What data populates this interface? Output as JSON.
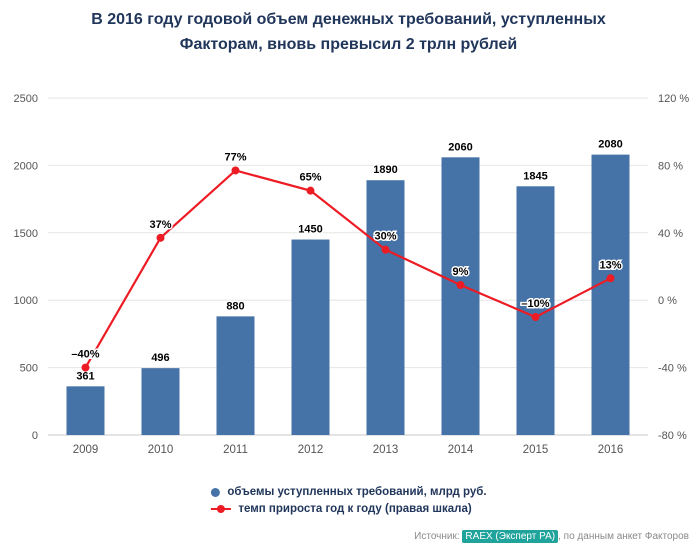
{
  "title": {
    "lines": [
      "В 2016 году годовой объем денежных требований, уступленных",
      "Факторам, вновь превысил 2 трлн рублей"
    ]
  },
  "colors": {
    "bar": "#4572a7",
    "line": "#ed1c24",
    "grid": "#e6e6e6",
    "axis_line": "#c8c8c8",
    "axis_text": "#555555",
    "value_label": "#000000",
    "title_text": "#21365b",
    "source_text": "#8a8a8a",
    "source_highlight_bg": "#1fa39b",
    "source_highlight_text": "#ffffff"
  },
  "chart_data": {
    "type": "bar",
    "subtype": "bar+line combo, dual axis",
    "categories": [
      "2009",
      "2010",
      "2011",
      "2012",
      "2013",
      "2014",
      "2015",
      "2016"
    ],
    "series": [
      {
        "name": "объемы уступленных требований, млрд руб.",
        "type": "bar",
        "axis": "left",
        "values": [
          361,
          496,
          880,
          1450,
          1890,
          2060,
          1845,
          2080
        ],
        "labels": [
          "361",
          "496",
          "880",
          "1450",
          "1890",
          "2060",
          "1845",
          "2080"
        ]
      },
      {
        "name": "темп прироста год к году (правая шкала)",
        "type": "line",
        "axis": "right",
        "values": [
          -40,
          37,
          77,
          65,
          30,
          9,
          -10,
          13
        ],
        "labels": [
          "–40%",
          "37%",
          "77%",
          "65%",
          "30%",
          "9%",
          "–10%",
          "13%"
        ]
      }
    ],
    "left_axis": {
      "min": 0,
      "max": 2500,
      "ticks": [
        0,
        500,
        1000,
        1500,
        2000,
        2500
      ],
      "tick_labels": [
        "0",
        "500",
        "1000",
        "1500",
        "2000",
        "2500"
      ]
    },
    "right_axis": {
      "min": -80,
      "max": 120,
      "ticks": [
        -80,
        -40,
        0,
        40,
        80,
        120
      ],
      "tick_labels": [
        "-80 %",
        "-40 %",
        "0 %",
        "40 %",
        "80 %",
        "120 %"
      ]
    },
    "grid": true,
    "legend_position": "bottom"
  },
  "legend": {
    "items": [
      {
        "label": "объемы уступленных требований, млрд руб.",
        "marker": "circle"
      },
      {
        "label": "темп прироста год к году (правая шкала)",
        "marker": "line-dot"
      }
    ]
  },
  "source": {
    "prefix": "Источник: ",
    "highlight": "RAEX (Эксперт РА)",
    "suffix": ", по данным анкет Факторов"
  }
}
